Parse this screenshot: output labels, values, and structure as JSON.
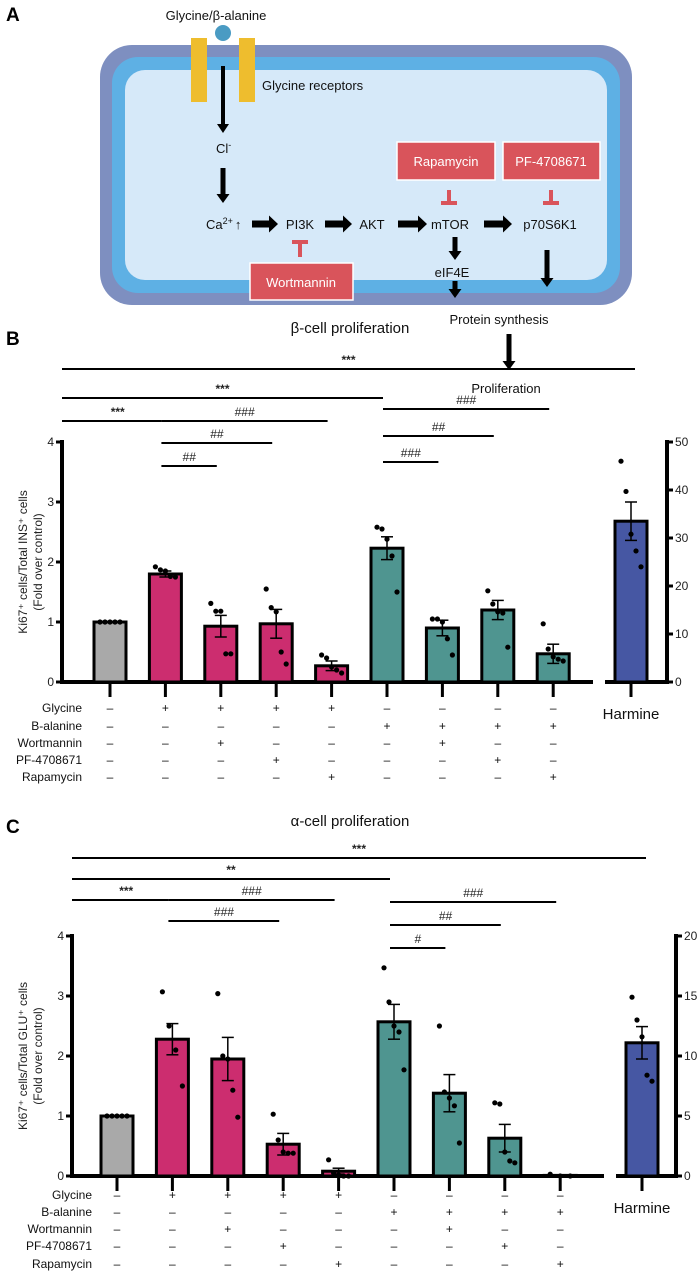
{
  "diagram": {
    "panel_label": "A",
    "ligand": "Glycine/β-alanine",
    "receptor": "Glycine receptors",
    "chloride": "Cl",
    "chloride_sup": "-",
    "calcium": "Ca",
    "calcium_sup": "2+",
    "calcium_arrow": "↑",
    "nodes": [
      "PI3K",
      "AKT",
      "mTOR",
      "p70S6K1",
      "eIF4E",
      "Protein synthesis",
      "Proliferation"
    ],
    "inhibitors": [
      "Wortmannin",
      "Rapamycin",
      "PF-4708671"
    ],
    "colors": {
      "membrane_outer": "#7e8fc0",
      "membrane_inner": "#5eb0e4",
      "cytoplasm": "#d6e9f9",
      "receptor": "#eebd2e",
      "ligand": "#4a9bc3",
      "inhibitor": "#d9545b"
    }
  },
  "chart_data": [
    {
      "panel_label": "B",
      "type": "bar",
      "title": "β-cell proliferation",
      "ylabel": "Ki67⁺ cells/Total INS⁺ cells",
      "ylabel2": "(Fold over control)",
      "ylim": [
        0,
        4
      ],
      "yticks": [
        "0",
        "1",
        "2",
        "3",
        "4"
      ],
      "y2lim": [
        0,
        50
      ],
      "y2ticks": [
        "0",
        "10",
        "20",
        "30",
        "40",
        "50"
      ],
      "condition_labels": [
        "Glycine",
        "B-alanine",
        "Wortmannin",
        "PF-4708671",
        "Rapamycin"
      ],
      "conditions": [
        [
          "–",
          "+",
          "+",
          "+",
          "+",
          "–",
          "–",
          "–",
          "–"
        ],
        [
          "–",
          "–",
          "–",
          "–",
          "–",
          "+",
          "+",
          "+",
          "+"
        ],
        [
          "–",
          "–",
          "+",
          "–",
          "–",
          "–",
          "+",
          "–",
          "–"
        ],
        [
          "–",
          "–",
          "–",
          "+",
          "–",
          "–",
          "–",
          "+",
          "–"
        ],
        [
          "–",
          "–",
          "–",
          "–",
          "+",
          "–",
          "–",
          "–",
          "+"
        ]
      ],
      "bars": [
        {
          "value": 1.0,
          "sem": 0.0,
          "color": "#a9a9a9",
          "points": [
            1,
            1,
            1,
            1,
            1
          ]
        },
        {
          "value": 1.8,
          "sem": 0.05,
          "color": "#cc2d6f",
          "points": [
            1.92,
            1.87,
            1.85,
            1.76,
            1.75
          ]
        },
        {
          "value": 0.93,
          "sem": 0.18,
          "color": "#cc2d6f",
          "points": [
            1.31,
            1.18,
            1.18,
            0.47,
            0.47
          ]
        },
        {
          "value": 0.97,
          "sem": 0.24,
          "color": "#cc2d6f",
          "points": [
            1.55,
            1.24,
            1.17,
            0.5,
            0.3
          ]
        },
        {
          "value": 0.27,
          "sem": 0.08,
          "color": "#cc2d6f",
          "points": [
            0.45,
            0.4,
            0.25,
            0.2,
            0.15
          ]
        },
        {
          "value": 2.23,
          "sem": 0.19,
          "color": "#4f9590",
          "points": [
            2.58,
            2.55,
            2.38,
            2.1,
            1.5
          ]
        },
        {
          "value": 0.9,
          "sem": 0.13,
          "color": "#4f9590",
          "points": [
            1.05,
            1.05,
            1.0,
            0.72,
            0.45
          ]
        },
        {
          "value": 1.2,
          "sem": 0.16,
          "color": "#4f9590",
          "points": [
            1.52,
            1.3,
            1.17,
            1.15,
            0.58
          ]
        },
        {
          "value": 0.47,
          "sem": 0.16,
          "color": "#4f9590",
          "points": [
            0.97,
            0.55,
            0.42,
            0.38,
            0.35
          ]
        }
      ],
      "harmine": {
        "label": "Harmine",
        "value": 33.5,
        "sem": 4.0,
        "color": "#4657a3",
        "points": [
          46,
          39.7,
          30.8,
          27.3,
          24
        ]
      },
      "comparisons": [
        {
          "from": 0,
          "to": "harmine",
          "label": "***"
        },
        {
          "from": 0,
          "to": 5,
          "label": "***"
        },
        {
          "from": 0,
          "to": 1,
          "label": "***"
        },
        {
          "from": 1,
          "to": 4,
          "label": "###"
        },
        {
          "from": 1,
          "to": 3,
          "label": "##"
        },
        {
          "from": 1,
          "to": 2,
          "label": "##"
        },
        {
          "from": 5,
          "to": 8,
          "label": "###"
        },
        {
          "from": 5,
          "to": 7,
          "label": "##"
        },
        {
          "from": 5,
          "to": 6,
          "label": "###"
        }
      ]
    },
    {
      "panel_label": "C",
      "type": "bar",
      "title": "α-cell proliferation",
      "ylabel": "Ki67⁺ cells/Total GLU⁺ cells",
      "ylabel2": "(Fold over control)",
      "ylim": [
        0,
        4
      ],
      "yticks": [
        "0",
        "1",
        "2",
        "3",
        "4"
      ],
      "y2lim": [
        0,
        20
      ],
      "y2ticks": [
        "0",
        "5",
        "10",
        "15",
        "20"
      ],
      "condition_labels": [
        "Glycine",
        "B-alanine",
        "Wortmannin",
        "PF-4708671",
        "Rapamycin"
      ],
      "conditions": [
        [
          "–",
          "+",
          "+",
          "+",
          "+",
          "–",
          "–",
          "–",
          "–"
        ],
        [
          "–",
          "–",
          "–",
          "–",
          "–",
          "+",
          "+",
          "+",
          "+"
        ],
        [
          "–",
          "–",
          "+",
          "–",
          "–",
          "–",
          "+",
          "–",
          "–"
        ],
        [
          "–",
          "–",
          "–",
          "+",
          "–",
          "–",
          "–",
          "+",
          "–"
        ],
        [
          "–",
          "–",
          "–",
          "–",
          "+",
          "–",
          "–",
          "–",
          "+"
        ]
      ],
      "bars": [
        {
          "value": 1.0,
          "sem": 0.0,
          "color": "#a9a9a9",
          "points": [
            1,
            1,
            1,
            1,
            1
          ]
        },
        {
          "value": 2.28,
          "sem": 0.26,
          "color": "#cc2d6f",
          "points": [
            3.07,
            2.5,
            2.1,
            1.5
          ]
        },
        {
          "value": 1.95,
          "sem": 0.36,
          "color": "#cc2d6f",
          "points": [
            3.04,
            2.0,
            1.95,
            1.43,
            0.98
          ]
        },
        {
          "value": 0.53,
          "sem": 0.18,
          "color": "#cc2d6f",
          "points": [
            1.03,
            0.6,
            0.4,
            0.38,
            0.38
          ]
        },
        {
          "value": 0.08,
          "sem": 0.05,
          "color": "#cc2d6f",
          "points": [
            0.27,
            0.05,
            0.02,
            0,
            0
          ]
        },
        {
          "value": 2.57,
          "sem": 0.29,
          "color": "#4f9590",
          "points": [
            3.47,
            2.9,
            2.5,
            2.4,
            1.77
          ]
        },
        {
          "value": 1.38,
          "sem": 0.31,
          "color": "#4f9590",
          "points": [
            2.5,
            1.4,
            1.3,
            1.17,
            0.55
          ]
        },
        {
          "value": 0.63,
          "sem": 0.23,
          "color": "#4f9590",
          "points": [
            1.22,
            1.2,
            0.4,
            0.25,
            0.22
          ]
        },
        {
          "value": 0.01,
          "sem": 0.0,
          "color": "#4f9590",
          "points": [
            0.03,
            0,
            0
          ]
        }
      ],
      "harmine": {
        "label": "Harmine",
        "value": 11.1,
        "sem": 1.35,
        "color": "#4657a3",
        "points": [
          14.9,
          13.0,
          11.6,
          8.4,
          7.9
        ]
      },
      "comparisons": [
        {
          "from": 0,
          "to": "harmine",
          "label": "***"
        },
        {
          "from": 0,
          "to": 5,
          "label": "**"
        },
        {
          "from": 0,
          "to": 1,
          "label": "***"
        },
        {
          "from": 1,
          "to": 4,
          "label": "###"
        },
        {
          "from": 1,
          "to": 3,
          "label": "###"
        },
        {
          "from": 5,
          "to": 8,
          "label": "###"
        },
        {
          "from": 5,
          "to": 7,
          "label": "##"
        },
        {
          "from": 5,
          "to": 6,
          "label": "#"
        }
      ]
    }
  ]
}
